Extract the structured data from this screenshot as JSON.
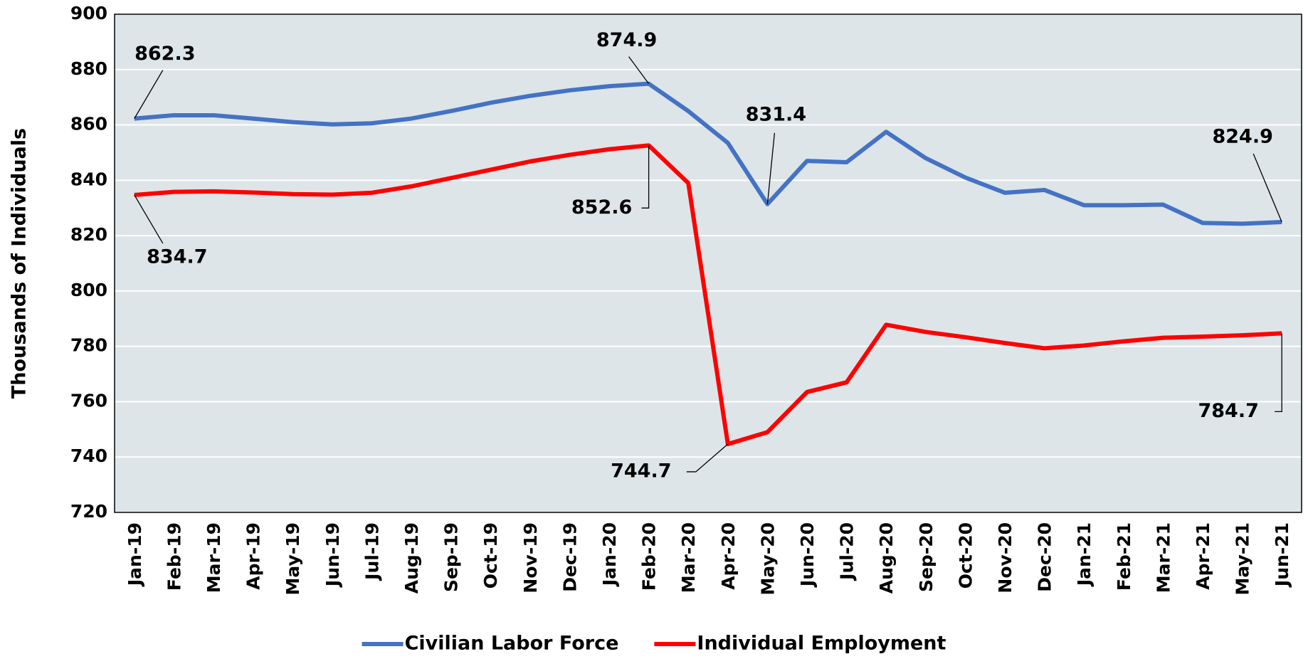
{
  "chart_data": {
    "type": "line",
    "ylabel": "Thousands of Individuals",
    "categories": [
      "Jan-19",
      "Feb-19",
      "Mar-19",
      "Apr-19",
      "May-19",
      "Jun-19",
      "Jul-19",
      "Aug-19",
      "Sep-19",
      "Oct-19",
      "Nov-19",
      "Dec-19",
      "Jan-20",
      "Feb-20",
      "Mar-20",
      "Apr-20",
      "May-20",
      "Jun-20",
      "Jul-20",
      "Aug-20",
      "Sep-20",
      "Oct-20",
      "Nov-20",
      "Dec-20",
      "Jan-21",
      "Feb-21",
      "Mar-21",
      "Apr-21",
      "May-21",
      "Jun-21"
    ],
    "series": [
      {
        "name": "Civilian Labor Force",
        "color": "#4472c4",
        "values": [
          862.3,
          863.5,
          863.5,
          862.3,
          861,
          860.2,
          860.6,
          862.3,
          865,
          868,
          870.5,
          872.5,
          874,
          874.9,
          865,
          853.5,
          831.4,
          847,
          846.5,
          857.5,
          848,
          841,
          835.5,
          836.5,
          831,
          831,
          831.2,
          824.6,
          824.3,
          824.9
        ],
        "value_labels": [
          "862.3",
          null,
          null,
          null,
          null,
          null,
          null,
          null,
          null,
          null,
          null,
          null,
          null,
          "874.9",
          null,
          null,
          "831.4",
          null,
          null,
          null,
          null,
          null,
          null,
          null,
          null,
          null,
          null,
          null,
          null,
          "824.9"
        ]
      },
      {
        "name": "Individual Employment",
        "color": "#ff0000",
        "values": [
          834.7,
          835.8,
          836,
          835.6,
          835,
          834.8,
          835.5,
          837.8,
          840.8,
          843.8,
          846.8,
          849.2,
          851.2,
          852.6,
          839,
          744.7,
          749,
          763.5,
          767,
          787.8,
          785.2,
          783.3,
          781.2,
          779.3,
          780.3,
          781.8,
          783.1,
          783.5,
          784,
          784.7
        ],
        "value_labels": [
          "834.7",
          null,
          null,
          null,
          null,
          null,
          null,
          null,
          null,
          null,
          null,
          null,
          null,
          "852.6",
          null,
          "744.7",
          null,
          null,
          null,
          null,
          null,
          null,
          null,
          null,
          null,
          null,
          null,
          null,
          null,
          "784.7"
        ]
      }
    ],
    "ylim": [
      720,
      900
    ],
    "yticks": [
      720,
      740,
      760,
      780,
      800,
      820,
      840,
      860,
      880,
      900
    ],
    "grid": true,
    "legend": "bottom"
  }
}
